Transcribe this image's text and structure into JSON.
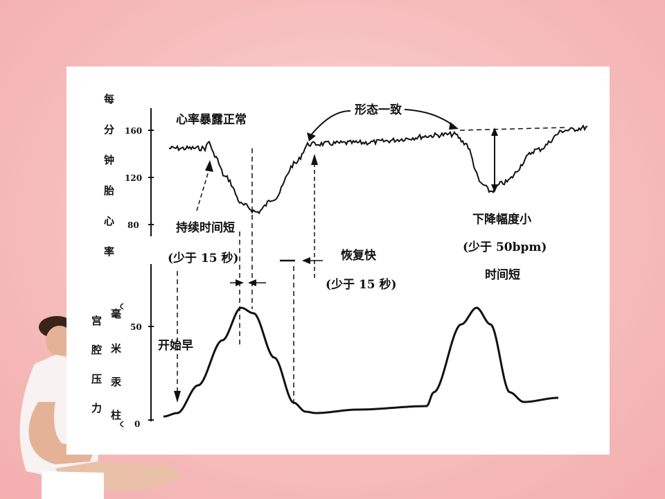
{
  "slide": {
    "background_color": "#f6bcbc",
    "figure_background": "#ffffff"
  },
  "fhr_axis": {
    "label_chars": [
      "每",
      "分",
      "钟",
      "胎",
      "心",
      "率"
    ],
    "ticks": [
      "160",
      "120",
      "80"
    ]
  },
  "uc_axis": {
    "label_col1": [
      "宫",
      "腔",
      "压",
      "力"
    ],
    "label_col2": [
      "毫",
      "米",
      "汞",
      "柱"
    ],
    "ticks": [
      "50",
      "0"
    ]
  },
  "annotations": {
    "heart_rate_top": "心率暴露正常",
    "shape_consistent": "形态一致",
    "duration_short": "持续时间短",
    "duration_short_sub": "(少于 15 秒)",
    "recovery_fast": "恢复快",
    "recovery_fast_sub": "(少于 15 秒)",
    "drop_small": "下降幅度小",
    "drop_small_sub": "(少于 50bpm)",
    "drop_time_short": "时间短",
    "start_early": "开始早"
  }
}
